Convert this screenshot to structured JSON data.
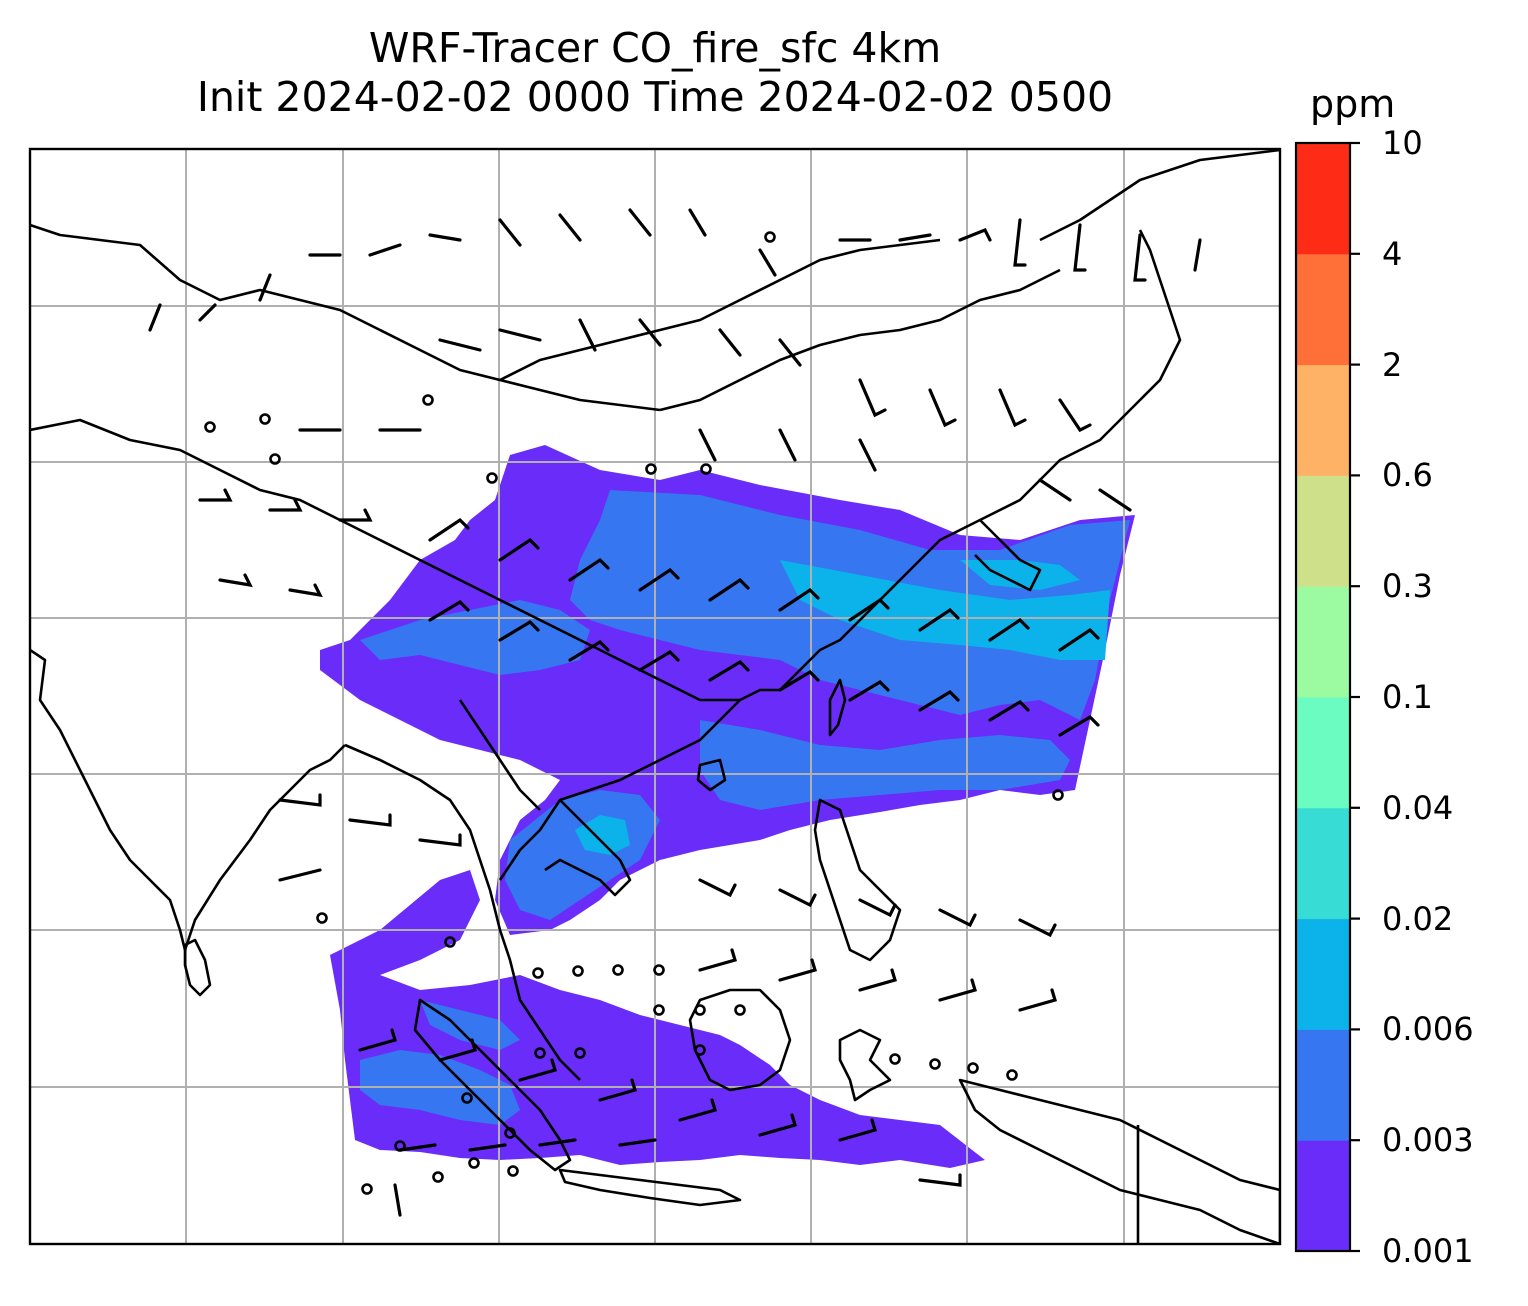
{
  "title": {
    "line1": "WRF-Tracer CO_fire_sfc 4km",
    "line2": "Init 2024-02-02 0000 Time 2024-02-02 0500"
  },
  "colorbar": {
    "unit": "ppm",
    "levels": [
      "0.001",
      "0.003",
      "0.006",
      "0.02",
      "0.04",
      "0.1",
      "0.3",
      "0.6",
      "2",
      "4",
      "10"
    ],
    "colors": [
      "#6a2cf8",
      "#3676f0",
      "#0cb3ea",
      "#37dcd4",
      "#6afcc0",
      "#9cfba1",
      "#cfe08a",
      "#feb266",
      "#fe7038",
      "#fe2c16"
    ]
  },
  "map": {
    "gridlines": true,
    "wind_barbs": true,
    "coastlines": true
  },
  "colors": {
    "coast": "#000000",
    "grid": "#b0b0b0",
    "background": "#ffffff"
  }
}
